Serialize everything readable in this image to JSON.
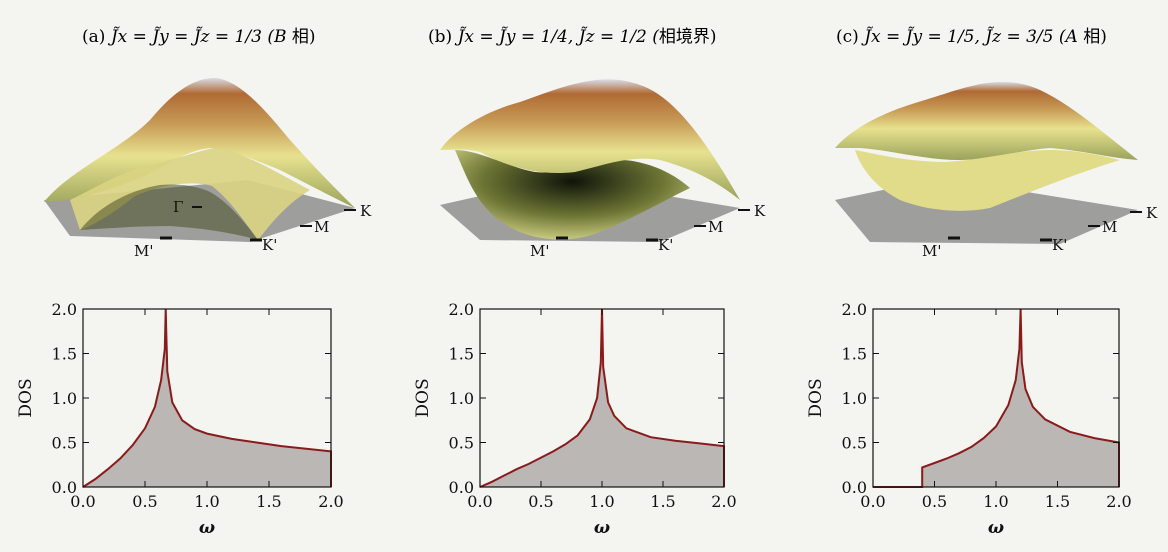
{
  "panels": [
    {
      "title_prefix": "(a) ",
      "title_math": "J̃x = J̃y = J̃z = 1/3 (",
      "title_phase": "B",
      "title_suffix": " 相)",
      "band_labels": [
        "Γ",
        "K",
        "M",
        "M'",
        "K'"
      ]
    },
    {
      "title_prefix": "(b) ",
      "title_math": "J̃x = J̃y = 1/4, J̃z = 1/2 (",
      "title_phase": "",
      "title_suffix": "相境界)",
      "band_labels": [
        "K",
        "M",
        "M'",
        "K'"
      ]
    },
    {
      "title_prefix": "(c) ",
      "title_math": "J̃x = J̃y = 1/5, J̃z = 3/5 (",
      "title_phase": "A",
      "title_suffix": " 相)",
      "band_labels": [
        "K",
        "M",
        "M'",
        "K'"
      ]
    }
  ],
  "colors": {
    "dos_line": "#8b1a1a",
    "dos_fill": "#b4b0ae",
    "surface_top": "#a05a2c",
    "surface_mid": "#e6e08a",
    "surface_low": "#1d2410",
    "plane": "#8e8e8e"
  },
  "chart_data": [
    {
      "type": "area",
      "xlabel": "ω",
      "ylabel": "DOS",
      "xlim": [
        0.0,
        2.0
      ],
      "ylim": [
        0.0,
        2.0
      ],
      "xticks": [
        "0.0",
        "0.5",
        "1.0",
        "1.5",
        "2.0"
      ],
      "yticks": [
        "0.0",
        "0.5",
        "1.0",
        "1.5",
        "2.0"
      ],
      "x": [
        0.0,
        0.1,
        0.2,
        0.3,
        0.4,
        0.5,
        0.58,
        0.63,
        0.66,
        0.667,
        0.68,
        0.72,
        0.8,
        0.9,
        1.0,
        1.2,
        1.4,
        1.6,
        1.8,
        2.0
      ],
      "y": [
        0.0,
        0.09,
        0.2,
        0.32,
        0.47,
        0.66,
        0.9,
        1.2,
        1.55,
        2.0,
        1.3,
        0.95,
        0.75,
        0.65,
        0.6,
        0.54,
        0.5,
        0.46,
        0.43,
        0.4
      ]
    },
    {
      "type": "area",
      "xlabel": "ω",
      "ylabel": "DOS",
      "xlim": [
        0.0,
        2.0
      ],
      "ylim": [
        0.0,
        2.0
      ],
      "xticks": [
        "0.0",
        "0.5",
        "1.0",
        "1.5",
        "2.0"
      ],
      "yticks": [
        "0.0",
        "0.5",
        "1.0",
        "1.5",
        "2.0"
      ],
      "x": [
        0.0,
        0.1,
        0.2,
        0.3,
        0.4,
        0.5,
        0.6,
        0.7,
        0.8,
        0.9,
        0.96,
        0.99,
        1.0,
        1.01,
        1.05,
        1.1,
        1.2,
        1.4,
        1.6,
        1.8,
        2.0
      ],
      "y": [
        0.0,
        0.06,
        0.13,
        0.2,
        0.26,
        0.33,
        0.4,
        0.48,
        0.58,
        0.76,
        1.0,
        1.4,
        2.0,
        1.35,
        0.95,
        0.8,
        0.66,
        0.56,
        0.52,
        0.49,
        0.46
      ]
    },
    {
      "type": "area",
      "xlabel": "ω",
      "ylabel": "DOS",
      "xlim": [
        0.0,
        2.0
      ],
      "ylim": [
        0.0,
        2.0
      ],
      "xticks": [
        "0.0",
        "0.5",
        "1.0",
        "1.5",
        "2.0"
      ],
      "yticks": [
        "0.0",
        "0.5",
        "1.0",
        "1.5",
        "2.0"
      ],
      "x": [
        0.0,
        0.4,
        0.4,
        0.5,
        0.6,
        0.7,
        0.8,
        0.9,
        1.0,
        1.1,
        1.16,
        1.19,
        1.2,
        1.21,
        1.24,
        1.3,
        1.4,
        1.6,
        1.8,
        2.0
      ],
      "y": [
        0.0,
        0.0,
        0.22,
        0.27,
        0.32,
        0.38,
        0.45,
        0.55,
        0.68,
        0.92,
        1.2,
        1.55,
        2.0,
        1.4,
        1.1,
        0.9,
        0.76,
        0.62,
        0.55,
        0.5
      ]
    }
  ]
}
